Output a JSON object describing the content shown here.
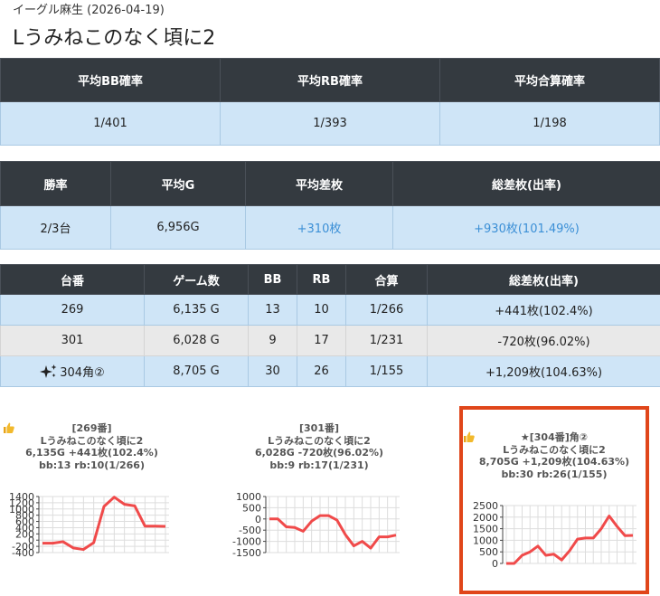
{
  "header": {
    "subtitle": "イーグル麻生 (2026-04-19)",
    "title": "Lうみねこのなく頃に2"
  },
  "probability_table": {
    "headers": [
      "平均BB確率",
      "平均RB確率",
      "平均合算確率"
    ],
    "values": [
      "1/401",
      "1/393",
      "1/198"
    ]
  },
  "summary_table": {
    "headers": [
      "勝率",
      "平均G",
      "平均差枚",
      "総差枚(出率)"
    ],
    "values": [
      "2/3台",
      "6,956G",
      "+310枚",
      "+930枚(101.49%)"
    ]
  },
  "machine_table": {
    "headers": [
      "台番",
      "ゲーム数",
      "BB",
      "RB",
      "合算",
      "総差枚(出率)"
    ],
    "rows": [
      {
        "number": "269",
        "games": "6,135 G",
        "bb": "13",
        "rb": "10",
        "combined": "1/266",
        "diff": "+441枚(102.4%)"
      },
      {
        "number": "301",
        "games": "6,028 G",
        "bb": "9",
        "rb": "17",
        "combined": "1/231",
        "diff": "-720枚(96.02%)"
      },
      {
        "number": "304角②",
        "games": "8,705 G",
        "bb": "30",
        "rb": "26",
        "combined": "1/155",
        "diff": "+1,209枚(104.63%)"
      }
    ]
  },
  "charts": [
    {
      "line1": "[269番]",
      "line2": "Lうみねこのなく頃に2",
      "line3": "6,135G +441枚(102.4%)",
      "line4": "bb:13 rb:10(1/266)",
      "icon": "thumbs-up-icon",
      "chart_data": {
        "type": "line",
        "yticks": [
          1400,
          1200,
          1000,
          800,
          600,
          400,
          200,
          0,
          -200,
          -400
        ],
        "ylim": [
          -400,
          1400
        ],
        "values": [
          -100,
          -100,
          -50,
          -250,
          -300,
          -80,
          1080,
          1380,
          1150,
          1100,
          450,
          450,
          441
        ]
      }
    },
    {
      "line1": "[301番]",
      "line2": "Lうみねこのなく頃に2",
      "line3": "6,028G -720枚(96.02%)",
      "line4": "bb:9 rb:17(1/231)",
      "icon": "",
      "chart_data": {
        "type": "line",
        "yticks": [
          1000,
          500,
          0,
          -500,
          -1000,
          -1500
        ],
        "ylim": [
          -1500,
          1000
        ],
        "values": [
          0,
          0,
          -350,
          -380,
          -550,
          -100,
          150,
          150,
          -50,
          -700,
          -1200,
          -1000,
          -1300,
          -800,
          -800,
          -720
        ]
      }
    },
    {
      "line1": "★[304番]角②",
      "line2": "Lうみねこのなく頃に2",
      "line3": "8,705G +1,209枚(104.63%)",
      "line4": "bb:30 rb:26(1/155)",
      "icon": "thumbs-up-icon",
      "chart_data": {
        "type": "line",
        "yticks": [
          2500,
          2000,
          1500,
          1000,
          500,
          0
        ],
        "ylim": [
          -200,
          2500
        ],
        "values": [
          0,
          0,
          350,
          500,
          750,
          350,
          400,
          150,
          550,
          1050,
          1100,
          1100,
          1500,
          2050,
          1600,
          1200,
          1209
        ]
      }
    }
  ],
  "colors": {
    "header_bg": "#343a40",
    "row_blue": "#cfe5f7",
    "row_gray": "#e9e9e9",
    "plus_text": "#3b8fd6",
    "series_line": "#f04a4a",
    "highlight_border": "#e0461a"
  }
}
